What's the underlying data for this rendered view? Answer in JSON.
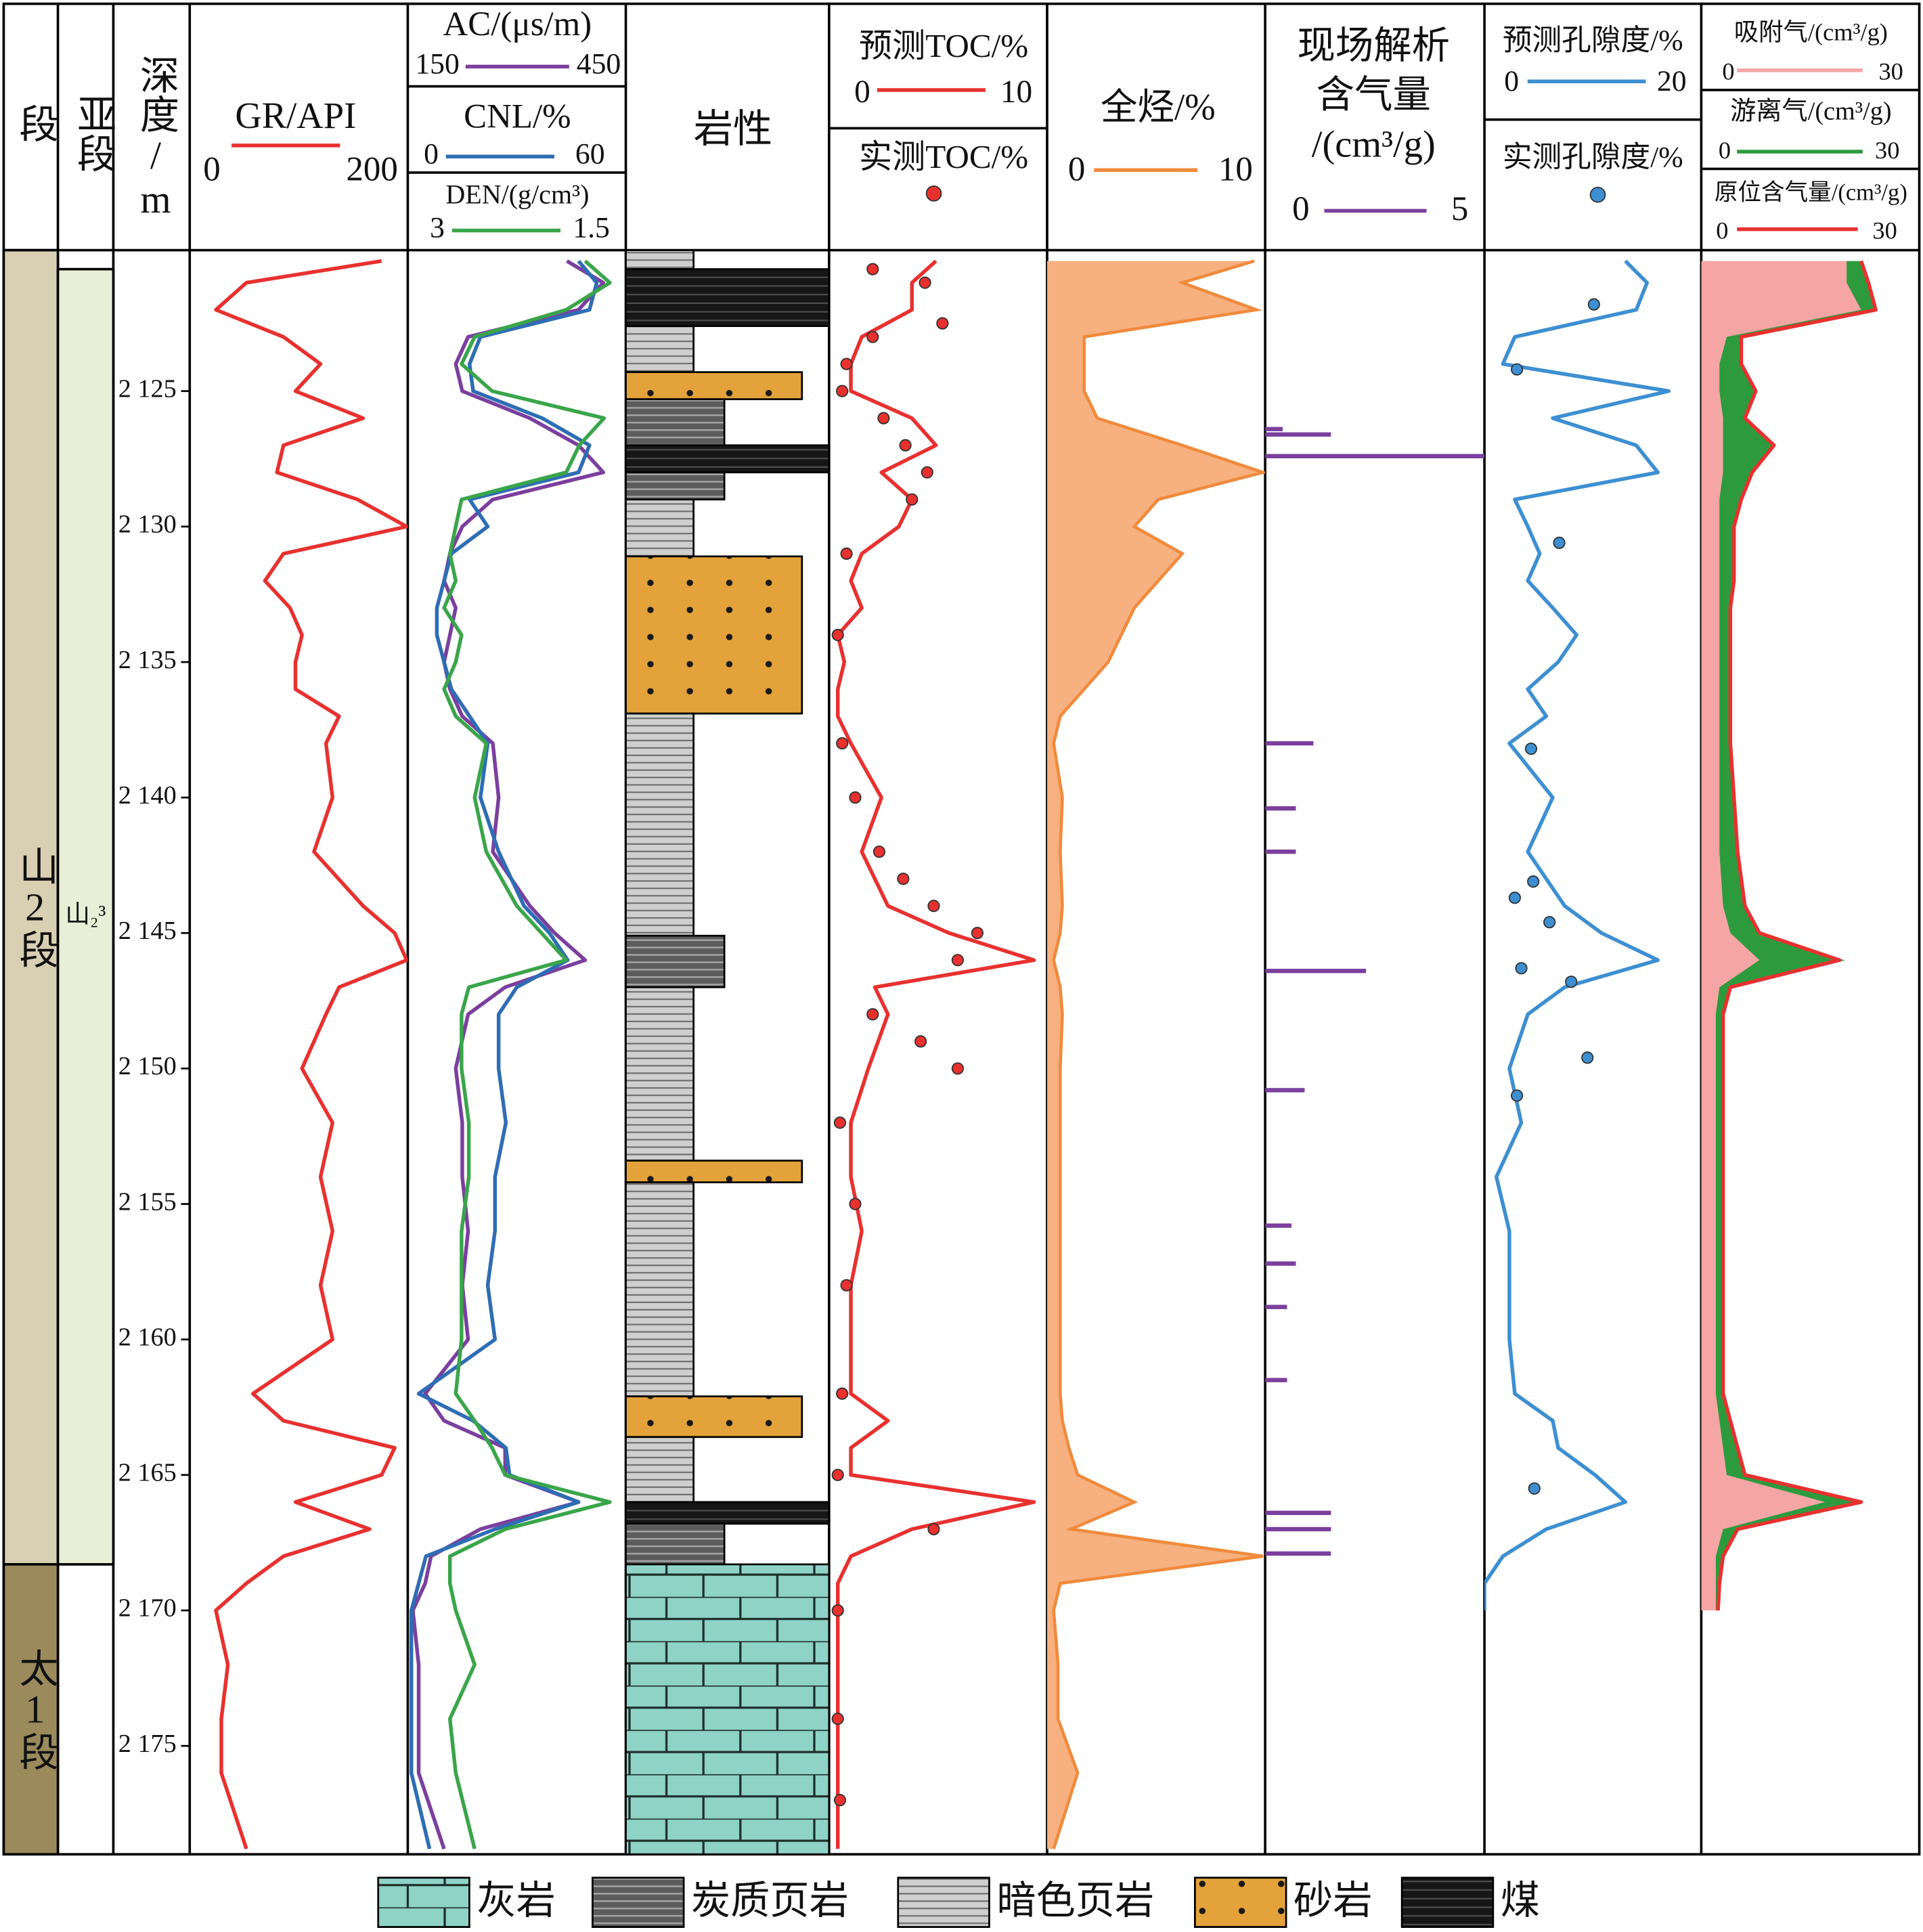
{
  "depth_axis": {
    "title": "深度/m",
    "ylim": [
      2119.8,
      2179.0
    ],
    "yticks": [
      {
        "value": 2125,
        "label": "2 125"
      },
      {
        "value": 2130,
        "label": "2 130"
      },
      {
        "value": 2135,
        "label": "2 135"
      },
      {
        "value": 2140,
        "label": "2 140"
      },
      {
        "value": 2145,
        "label": "2 145"
      },
      {
        "value": 2150,
        "label": "2 150"
      },
      {
        "value": 2155,
        "label": "2 155"
      },
      {
        "value": 2160,
        "label": "2 160"
      },
      {
        "value": 2165,
        "label": "2 165"
      },
      {
        "value": 2170,
        "label": "2 170"
      },
      {
        "value": 2175,
        "label": "2 175"
      }
    ],
    "depths": [
      2120.2,
      2121,
      2122,
      2123,
      2124,
      2125,
      2126,
      2127,
      2128,
      2129,
      2130,
      2131,
      2132,
      2133,
      2134,
      2135,
      2136,
      2137,
      2138,
      2140,
      2142,
      2144,
      2145,
      2146,
      2147,
      2148,
      2150,
      2152,
      2154,
      2156,
      2158,
      2160,
      2162,
      2163,
      2164,
      2165,
      2166,
      2167,
      2168,
      2169,
      2170,
      2172,
      2174,
      2176,
      2178.8
    ]
  },
  "strata": {
    "title": "段",
    "units": [
      {
        "name": "山2段",
        "top": 2119.8,
        "bottom": 2168.3
      },
      {
        "name": "太1段",
        "top": 2168.3,
        "bottom": 2179.0
      }
    ]
  },
  "substrata": {
    "title": "亚段",
    "units": [
      {
        "name": "山₂³",
        "top": 2120.5,
        "bottom": 2168.3
      }
    ]
  },
  "lithology": {
    "title": "岩性",
    "intervals": [
      {
        "pattern": "dark-shale",
        "top": 2119.8,
        "bottom": 2120.5
      },
      {
        "pattern": "coal",
        "top": 2120.5,
        "bottom": 2122.6
      },
      {
        "pattern": "dark-shale",
        "top": 2122.6,
        "bottom": 2124.3
      },
      {
        "pattern": "sandstone",
        "top": 2124.3,
        "bottom": 2125.3
      },
      {
        "pattern": "carbonaceous",
        "top": 2125.3,
        "bottom": 2127.0
      },
      {
        "pattern": "coal",
        "top": 2127.0,
        "bottom": 2128.0
      },
      {
        "pattern": "carbonaceous",
        "top": 2128.0,
        "bottom": 2129.0
      },
      {
        "pattern": "dark-shale",
        "top": 2129.0,
        "bottom": 2131.1
      },
      {
        "pattern": "sandstone",
        "top": 2131.1,
        "bottom": 2136.9
      },
      {
        "pattern": "dark-shale",
        "top": 2136.9,
        "bottom": 2145.1
      },
      {
        "pattern": "carbonaceous",
        "top": 2145.1,
        "bottom": 2147.0
      },
      {
        "pattern": "dark-shale",
        "top": 2147.0,
        "bottom": 2153.4
      },
      {
        "pattern": "sandstone",
        "top": 2153.4,
        "bottom": 2154.2
      },
      {
        "pattern": "dark-shale",
        "top": 2154.2,
        "bottom": 2162.1
      },
      {
        "pattern": "sandstone",
        "top": 2162.1,
        "bottom": 2163.6
      },
      {
        "pattern": "dark-shale",
        "top": 2163.6,
        "bottom": 2166.0
      },
      {
        "pattern": "coal",
        "top": 2166.0,
        "bottom": 2166.8
      },
      {
        "pattern": "carbonaceous",
        "top": 2166.8,
        "bottom": 2168.3
      },
      {
        "pattern": "limestone",
        "top": 2168.3,
        "bottom": 2179.0
      }
    ]
  },
  "legend": [
    {
      "name": "灰岩",
      "pattern": "limestone"
    },
    {
      "name": "炭质页岩",
      "pattern": "carbonaceous"
    },
    {
      "name": "暗色页岩",
      "pattern": "dark-shale"
    },
    {
      "name": "砂岩",
      "pattern": "sandstone"
    },
    {
      "name": "煤",
      "pattern": "coal"
    }
  ],
  "chart_data": [
    {
      "type": "line",
      "series": [
        {
          "name": "GR/API",
          "type": "line",
          "color": "#e8312f",
          "xlim": [
            0,
            200
          ],
          "values": [
            176,
            52,
            24,
            86,
            120,
            97,
            159,
            86,
            80,
            154,
            199,
            86,
            69,
            92,
            103,
            97,
            97,
            137,
            125,
            131,
            114,
            159,
            188,
            199,
            137,
            125,
            103,
            131,
            120,
            131,
            120,
            131,
            58,
            86,
            188,
            176,
            97,
            165,
            86,
            52,
            24,
            35,
            29,
            29,
            52
          ]
        }
      ]
    },
    {
      "type": "line",
      "series": [
        {
          "name": "AC/(μs/m)",
          "type": "line",
          "color": "#7b3f9e",
          "xlim": [
            150,
            450
          ],
          "values": [
            369,
            419,
            385,
            233,
            216,
            225,
            318,
            385,
            419,
            267,
            225,
            208,
            200,
            216,
            208,
            200,
            208,
            225,
            267,
            275,
            267,
            318,
            352,
            394,
            284,
            233,
            216,
            225,
            225,
            233,
            225,
            233,
            174,
            200,
            284,
            284,
            385,
            250,
            182,
            174,
            157,
            165,
            165,
            165,
            200
          ]
        },
        {
          "name": "CNL/%",
          "type": "line",
          "color": "#2e6db4",
          "xlim": [
            0,
            60
          ],
          "values": [
            47,
            52,
            50,
            20,
            17,
            18,
            37,
            50,
            47,
            17,
            22,
            12,
            10,
            8,
            8,
            10,
            12,
            17,
            22,
            20,
            25,
            32,
            39,
            44,
            30,
            25,
            25,
            27,
            24,
            24,
            22,
            24,
            3,
            18,
            27,
            28,
            47,
            24,
            5,
            3,
            1,
            1,
            1,
            1,
            6
          ]
        },
        {
          "name": "DEN/(g/cm³)",
          "type": "line",
          "color": "#3aa54a",
          "xlim": [
            3,
            1.5
          ],
          "values": [
            1.78,
            1.61,
            1.91,
            2.54,
            2.63,
            2.42,
            1.65,
            1.82,
            1.91,
            2.63,
            2.67,
            2.71,
            2.67,
            2.75,
            2.63,
            2.67,
            2.75,
            2.67,
            2.46,
            2.54,
            2.46,
            2.25,
            2.08,
            1.91,
            2.58,
            2.63,
            2.63,
            2.58,
            2.58,
            2.63,
            2.63,
            2.63,
            2.67,
            2.54,
            2.42,
            2.33,
            1.61,
            2.33,
            2.71,
            2.71,
            2.67,
            2.54,
            2.71,
            2.67,
            2.54
          ]
        }
      ]
    },
    {
      "type": "line",
      "series": [
        {
          "name": "预测TOC/%",
          "type": "line",
          "color": "#e8312f",
          "xlim": [
            0,
            10
          ],
          "values": [
            4.9,
            3.8,
            3.8,
            1.5,
            1.0,
            1.0,
            3.8,
            4.9,
            2.4,
            3.8,
            3.2,
            1.5,
            1.0,
            1.5,
            0.4,
            0.7,
            0.4,
            0.4,
            1.0,
            2.4,
            1.5,
            2.7,
            5.5,
            9.4,
            2.1,
            2.7,
            1.8,
            1.0,
            1.0,
            1.5,
            1.0,
            1.0,
            1.0,
            2.7,
            1.0,
            1.0,
            9.4,
            3.8,
            1.0,
            0.4,
            0.4,
            0.4,
            0.4,
            0.4,
            0.4
          ]
        },
        {
          "name": "实测TOC/%",
          "type": "scatter",
          "color": "#e8312f",
          "xlim": [
            0,
            10
          ],
          "depths": [
            2120.5,
            2121,
            2122.5,
            2123,
            2124,
            2125,
            2126,
            2127,
            2128,
            2129,
            2131,
            2134,
            2138,
            2140,
            2142,
            2143,
            2144,
            2145,
            2146,
            2148,
            2149,
            2150,
            2152,
            2155,
            2158,
            2162,
            2165,
            2167,
            2170,
            2174,
            2177
          ],
          "values": [
            2.0,
            4.4,
            5.2,
            2.0,
            0.8,
            0.6,
            2.5,
            3.5,
            4.5,
            3.8,
            0.8,
            0.4,
            0.6,
            1.2,
            2.3,
            3.4,
            4.8,
            6.8,
            5.9,
            2.0,
            4.2,
            5.9,
            0.5,
            1.2,
            0.8,
            0.6,
            0.4,
            4.8,
            0.4,
            0.4,
            0.5
          ]
        }
      ]
    },
    {
      "type": "area",
      "series": [
        {
          "name": "全烃/%",
          "type": "area",
          "color": "#f08a3c",
          "fill": "#f7b07f",
          "xlim": [
            0,
            10
          ],
          "values": [
            9.5,
            6.2,
            9.6,
            1.7,
            1.7,
            1.7,
            2.3,
            6.2,
            9.9,
            5.1,
            4.0,
            6.2,
            5.1,
            4.0,
            3.4,
            2.8,
            1.7,
            0.6,
            0.3,
            0.7,
            0.6,
            0.7,
            0.6,
            0.3,
            0.6,
            0.7,
            0.6,
            0.6,
            0.6,
            0.6,
            0.6,
            0.6,
            0.6,
            0.7,
            1.0,
            1.4,
            4.0,
            1.1,
            9.9,
            0.6,
            0.3,
            0.5,
            0.5,
            1.4,
            0.3
          ]
        }
      ]
    },
    {
      "type": "bar",
      "title": [
        "现场解析",
        "含气量",
        "/(cm³/g)"
      ],
      "series": [
        {
          "type": "bar",
          "color": "#7b3f9e",
          "xlim": [
            0,
            5
          ],
          "depths": [
            2126.4,
            2126.6,
            2127.4,
            2138.0,
            2140.4,
            2142.0,
            2146.4,
            2150.8,
            2155.8,
            2157.2,
            2158.8,
            2161.5,
            2166.4,
            2167.0,
            2167.9
          ],
          "values": [
            0.4,
            1.5,
            5.0,
            1.1,
            0.7,
            0.7,
            2.3,
            0.9,
            0.6,
            0.7,
            0.5,
            0.5,
            1.5,
            1.5,
            1.5
          ]
        }
      ]
    },
    {
      "type": "line",
      "series": [
        {
          "name": "预测孔隙度/%",
          "type": "line",
          "color": "#3d8fd1",
          "xlim": [
            0,
            20
          ],
          "values": [
            13,
            15,
            14,
            2.8,
            1.7,
            17,
            6.3,
            14,
            16,
            2.8,
            4,
            5.1,
            4,
            6.3,
            8.5,
            6.8,
            4,
            5.7,
            2.3,
            6.3,
            4,
            7.4,
            10.8,
            16,
            7.4,
            4,
            2.3,
            3.4,
            1.1,
            2.3,
            2.3,
            2.3,
            2.8,
            6.3,
            6.8,
            10.2,
            13,
            5.7,
            1.7,
            0,
            0,
            null,
            null,
            null,
            null
          ]
        },
        {
          "name": "实测孔隙度/%",
          "type": "scatter",
          "color": "#3d8fd1",
          "xlim": [
            0,
            20
          ],
          "depths": [
            2121.8,
            2124.2,
            2130.6,
            2138.2,
            2143.1,
            2143.7,
            2144.6,
            2146.3,
            2146.8,
            2149.6,
            2151.0,
            2165.5
          ],
          "values": [
            10.1,
            3.0,
            6.9,
            4.3,
            4.5,
            2.8,
            6.0,
            3.4,
            8.0,
            9.5,
            3.0,
            4.6
          ]
        }
      ]
    },
    {
      "type": "area",
      "series": [
        {
          "name": "吸附气/(cm³/g)",
          "type": "area",
          "color": "#f6a5a5",
          "fill": "#f6a5a5",
          "xlim": [
            0,
            30
          ],
          "values": [
            20,
            20,
            22,
            3.5,
            2.5,
            2.5,
            3,
            3,
            3,
            2.5,
            2.5,
            2.5,
            2.5,
            2.5,
            2.5,
            2.5,
            2.5,
            2.5,
            2.5,
            2.5,
            2.5,
            3,
            4,
            8,
            2.5,
            2,
            2,
            2,
            2,
            2,
            2,
            2,
            2,
            2.5,
            3,
            3.5,
            17,
            3,
            2,
            2,
            2,
            null,
            null,
            null,
            null
          ]
        },
        {
          "name": "游离气/(cm³/g)",
          "type": "area",
          "color": "#2e9a3e",
          "fill": "#2e9a3e",
          "xlim": [
            0,
            30
          ],
          "values": [
            2,
            3,
            2,
            2,
            3,
            5,
            3,
            7,
            4,
            3,
            2,
            2,
            2,
            1.5,
            1.5,
            1.5,
            1.5,
            1.5,
            1.5,
            2,
            2.5,
            3,
            4,
            11,
            1.5,
            1,
            1,
            1,
            1,
            1,
            1,
            1,
            1,
            1.5,
            2,
            2.5,
            5,
            2,
            1,
            0.5,
            0.3,
            null,
            null,
            null,
            null
          ]
        },
        {
          "name": "原位含气量/(cm³/g)",
          "type": "line",
          "color": "#e8312f",
          "xlim": [
            0,
            30
          ],
          "values": [
            22,
            23,
            24,
            5.5,
            5.5,
            7.5,
            6,
            10,
            7,
            5.5,
            4.5,
            4.5,
            4.5,
            4,
            4,
            4,
            4,
            4,
            4,
            4.5,
            5,
            6,
            8,
            19,
            4,
            3,
            3,
            3,
            3,
            3,
            3,
            3,
            3,
            4,
            5,
            6,
            22,
            5,
            3,
            2.5,
            2.3,
            null,
            null,
            null,
            null
          ]
        }
      ]
    }
  ]
}
